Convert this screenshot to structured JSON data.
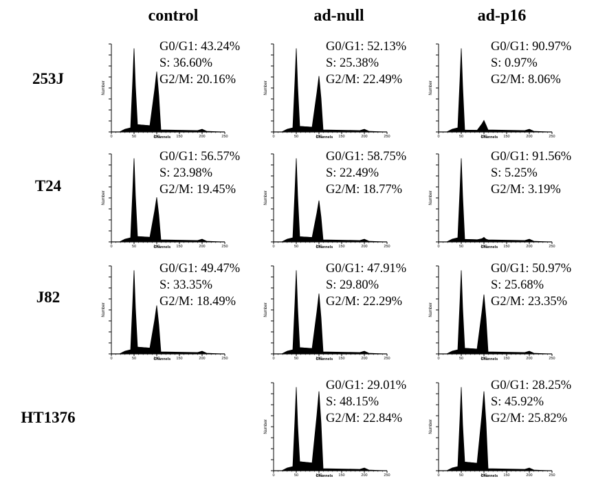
{
  "columns": [
    "control",
    "ad-null",
    "ad-p16"
  ],
  "rows": [
    "253J",
    "T24",
    "J82",
    "HT1376"
  ],
  "axis": {
    "x_label": "Channels",
    "y_label": "Number",
    "x_ticks": [
      "0",
      "50",
      "100",
      "150",
      "200",
      "250"
    ]
  },
  "panels": [
    {
      "row": "253J",
      "col": "control",
      "lines": [
        "G0/G1: 43.24%",
        "S: 36.60%",
        "G2/M: 20.16%"
      ]
    },
    {
      "row": "253J",
      "col": "ad-null",
      "lines": [
        "G0/G1: 52.13%",
        "S: 25.38%",
        "G2/M: 22.49%"
      ]
    },
    {
      "row": "253J",
      "col": "ad-p16",
      "lines": [
        "G0/G1: 90.97%",
        "S: 0.97%",
        "G2/M: 8.06%"
      ]
    },
    {
      "row": "T24",
      "col": "control",
      "lines": [
        "G0/G1: 56.57%",
        "S: 23.98%",
        "G2/M: 19.45%"
      ]
    },
    {
      "row": "T24",
      "col": "ad-null",
      "lines": [
        "G0/G1: 58.75%",
        "S: 22.49%",
        "G2/M: 18.77%"
      ]
    },
    {
      "row": "T24",
      "col": "ad-p16",
      "lines": [
        "G0/G1: 91.56%",
        "S: 5.25%",
        "G2/M: 3.19%"
      ]
    },
    {
      "row": "J82",
      "col": "control",
      "lines": [
        "G0/G1: 49.47%",
        "S: 33.35%",
        "G2/M: 18.49%"
      ]
    },
    {
      "row": "J82",
      "col": "ad-null",
      "lines": [
        "G0/G1: 47.91%",
        "S: 29.80%",
        "G2/M: 22.29%"
      ]
    },
    {
      "row": "J82",
      "col": "ad-p16",
      "lines": [
        "G0/G1: 50.97%",
        "S: 25.68%",
        "G2/M: 23.35%"
      ]
    },
    {
      "row": "HT1376",
      "col": "ad-null",
      "lines": [
        "G0/G1: 29.01%",
        "S: 48.15%",
        "G2/M: 22.84%"
      ]
    },
    {
      "row": "HT1376",
      "col": "ad-p16",
      "lines": [
        "G0/G1: 28.25%",
        "S: 45.92%",
        "G2/M: 25.82%"
      ]
    }
  ],
  "chart_data": {
    "type": "area",
    "description_units": "DNA content histograms; x in channels (0-250), G0/G1 peak ~50, G2/M peak ~100",
    "xlim": [
      0,
      250
    ],
    "xlabel": "Channels",
    "ylabel": "Number"
  }
}
